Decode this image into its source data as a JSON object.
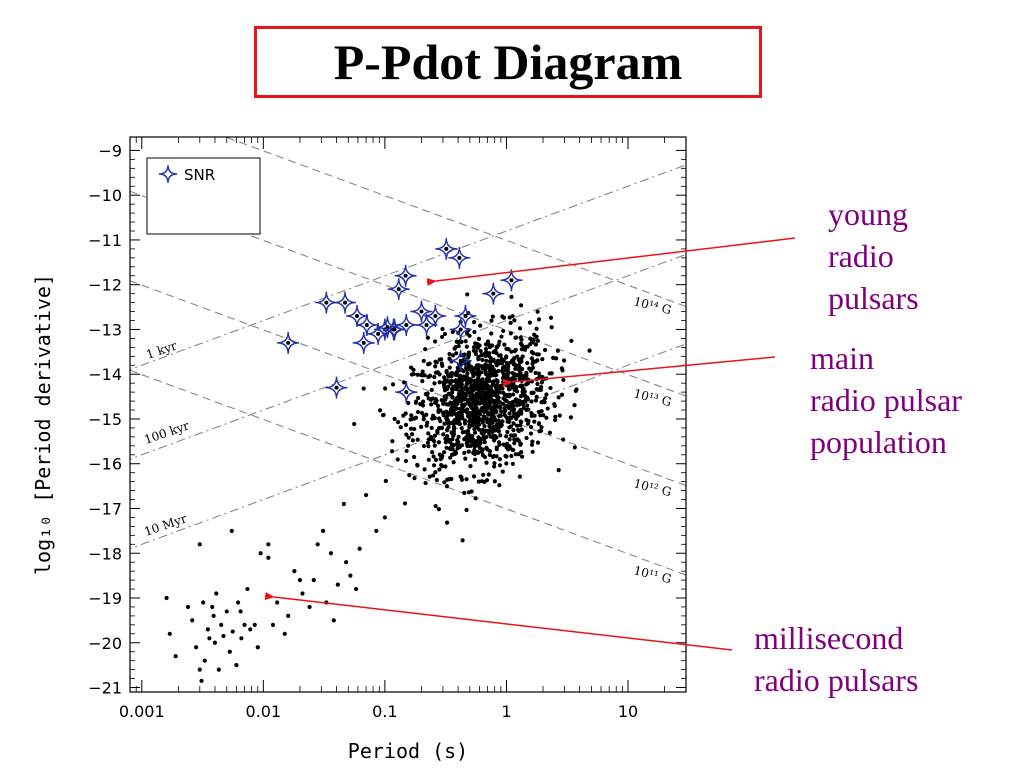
{
  "title": "P-Pdot Diagram",
  "colors": {
    "title_border": "#e8141c",
    "annotation": "#800080",
    "arrow": "#e8141c",
    "snr_marker": "#2233aa",
    "points": "#000000",
    "lines": "#888888"
  },
  "annotations": {
    "young": [
      "young",
      "radio",
      "pulsars"
    ],
    "main": [
      "main",
      "radio pulsar",
      "population"
    ],
    "msp": [
      "millisecond",
      "radio pulsars"
    ]
  },
  "chart_data": {
    "type": "scatter",
    "xlabel": "Period (s)",
    "ylabel": "log₁₀ [Period derivative]",
    "x_scale": "log",
    "xlim": [
      0.0008,
      30
    ],
    "ylim": [
      -21.1,
      -8.7
    ],
    "x_ticks": [
      0.001,
      0.01,
      0.1,
      1,
      10
    ],
    "x_tick_labels": [
      "0.001",
      "0.01",
      "0.1",
      "1",
      "10"
    ],
    "y_ticks": [
      -9,
      -10,
      -11,
      -12,
      -13,
      -14,
      -15,
      -16,
      -17,
      -18,
      -19,
      -20,
      -21
    ],
    "y_tick_labels": [
      "−9",
      "−10",
      "−11",
      "−12",
      "−13",
      "−14",
      "−15",
      "−16",
      "−17",
      "−18",
      "−19",
      "−20",
      "−21"
    ],
    "legend": {
      "entries": [
        "SNR"
      ],
      "placement": "top-left"
    },
    "age_lines": [
      {
        "label": "1 kyr",
        "age_yr": 1000
      },
      {
        "label": "100 kyr",
        "age_yr": 100000
      },
      {
        "label": "10 Myr",
        "age_yr": 10000000
      }
    ],
    "field_lines": [
      {
        "label": "10¹⁴ G",
        "B_gauss": 100000000000000.0
      },
      {
        "label": "10¹³ G",
        "B_gauss": 10000000000000.0
      },
      {
        "label": "10¹² G",
        "B_gauss": 1000000000000.0
      },
      {
        "label": "10¹¹ G",
        "B_gauss": 100000000000.0
      }
    ],
    "snr_pulsars": [
      [
        0.016,
        -13.3
      ],
      [
        0.033,
        -12.4
      ],
      [
        0.047,
        -12.4
      ],
      [
        0.04,
        -14.3
      ],
      [
        0.059,
        -12.7
      ],
      [
        0.067,
        -13.3
      ],
      [
        0.071,
        -12.9
      ],
      [
        0.088,
        -13.1
      ],
      [
        0.1,
        -13.0
      ],
      [
        0.105,
        -12.95
      ],
      [
        0.118,
        -13.0
      ],
      [
        0.13,
        -12.1
      ],
      [
        0.148,
        -11.8
      ],
      [
        0.15,
        -14.4
      ],
      [
        0.15,
        -12.9
      ],
      [
        0.2,
        -12.6
      ],
      [
        0.22,
        -12.9
      ],
      [
        0.26,
        -12.7
      ],
      [
        0.32,
        -11.2
      ],
      [
        0.41,
        -11.4
      ],
      [
        0.42,
        -13.0
      ],
      [
        0.46,
        -12.7
      ],
      [
        0.78,
        -12.2
      ],
      [
        1.1,
        -11.9
      ],
      [
        0.42,
        -13.7
      ],
      [
        0.12,
        -13.0
      ]
    ],
    "msp_points": [
      [
        0.0016,
        -19.0
      ],
      [
        0.0017,
        -19.8
      ],
      [
        0.0019,
        -20.3
      ],
      [
        0.0024,
        -19.2
      ],
      [
        0.0026,
        -19.5
      ],
      [
        0.0028,
        -20.1
      ],
      [
        0.003,
        -20.6
      ],
      [
        0.0031,
        -20.85
      ],
      [
        0.0033,
        -20.4
      ],
      [
        0.0035,
        -19.7
      ],
      [
        0.0036,
        -19.9
      ],
      [
        0.0038,
        -19.2
      ],
      [
        0.004,
        -20.0
      ],
      [
        0.0041,
        -18.9
      ],
      [
        0.0043,
        -20.6
      ],
      [
        0.0045,
        -19.6
      ],
      [
        0.0047,
        -19.85
      ],
      [
        0.005,
        -19.3
      ],
      [
        0.0053,
        -20.2
      ],
      [
        0.0056,
        -19.75
      ],
      [
        0.006,
        -20.5
      ],
      [
        0.0062,
        -19.1
      ],
      [
        0.0066,
        -19.9
      ],
      [
        0.007,
        -19.6
      ],
      [
        0.0074,
        -18.8
      ],
      [
        0.0078,
        -19.7
      ],
      [
        0.0085,
        -19.6
      ],
      [
        0.009,
        -20.1
      ],
      [
        0.0095,
        -18.0
      ],
      [
        0.011,
        -18.1
      ],
      [
        0.012,
        -19.6
      ],
      [
        0.013,
        -19.1
      ],
      [
        0.015,
        -19.8
      ],
      [
        0.016,
        -19.4
      ],
      [
        0.018,
        -18.4
      ],
      [
        0.021,
        -18.9
      ],
      [
        0.024,
        -19.2
      ],
      [
        0.026,
        -18.6
      ],
      [
        0.028,
        -17.8
      ],
      [
        0.031,
        -17.5
      ],
      [
        0.033,
        -19.1
      ],
      [
        0.036,
        -18.0
      ],
      [
        0.038,
        -19.5
      ],
      [
        0.041,
        -18.7
      ],
      [
        0.046,
        -16.9
      ],
      [
        0.052,
        -18.5
      ],
      [
        0.058,
        -18.8
      ],
      [
        0.062,
        -17.9
      ],
      [
        0.07,
        -16.7
      ],
      [
        0.085,
        -17.5
      ],
      [
        0.1,
        -17.2
      ],
      [
        0.011,
        -17.8
      ],
      [
        0.003,
        -17.8
      ],
      [
        0.0055,
        -17.5
      ],
      [
        0.02,
        -18.6
      ],
      [
        0.048,
        -18.2
      ],
      [
        0.0032,
        -19.1
      ],
      [
        0.0039,
        -19.4
      ],
      [
        0.0065,
        -19.3
      ]
    ],
    "main_population": {
      "description_count": 1300,
      "center_log10_period": -0.2,
      "center_log10_pdot": -14.6,
      "spread_log10_period": 0.28,
      "spread_log10_pdot": 0.75
    }
  }
}
